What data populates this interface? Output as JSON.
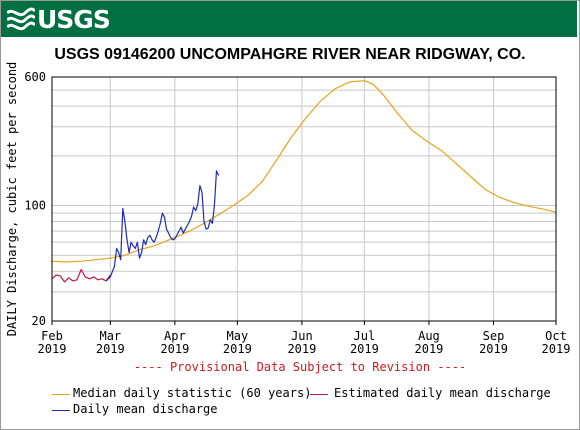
{
  "header": {
    "logo_text": "USGS",
    "brand_color": "#006f41"
  },
  "chart_data": {
    "type": "line",
    "title": "USGS 09146200 UNCOMPAHGRE RIVER NEAR RIDGWAY, CO.",
    "ylabel": "DAILY Discharge, cubic feet per second",
    "yscale": "log",
    "ylim": [
      20,
      600
    ],
    "yticks": [
      {
        "value": 20,
        "label": "20"
      },
      {
        "value": 100,
        "label": "100"
      },
      {
        "value": 600,
        "label": "600"
      }
    ],
    "xlim": [
      "2019-02-01",
      "2019-10-01"
    ],
    "xticks": [
      {
        "date": "2019-02-01",
        "label1": "Feb",
        "label2": "2019"
      },
      {
        "date": "2019-03-01",
        "label1": "Mar",
        "label2": "2019"
      },
      {
        "date": "2019-04-01",
        "label1": "Apr",
        "label2": "2019"
      },
      {
        "date": "2019-05-01",
        "label1": "May",
        "label2": "2019"
      },
      {
        "date": "2019-06-01",
        "label1": "Jun",
        "label2": "2019"
      },
      {
        "date": "2019-07-01",
        "label1": "Jul",
        "label2": "2019"
      },
      {
        "date": "2019-08-01",
        "label1": "Aug",
        "label2": "2019"
      },
      {
        "date": "2019-09-01",
        "label1": "Sep",
        "label2": "2019"
      },
      {
        "date": "2019-10-01",
        "label1": "Oct",
        "label2": "2019"
      }
    ],
    "grid": true,
    "legend_position": "bottom",
    "note": "---- Provisional Data Subject to Revision ----",
    "series": [
      {
        "name": "Median daily statistic (60 years)",
        "color": "#e6a31c",
        "points": [
          [
            "2019-02-01",
            46
          ],
          [
            "2019-02-08",
            45.5
          ],
          [
            "2019-02-15",
            46
          ],
          [
            "2019-02-22",
            47
          ],
          [
            "2019-03-01",
            48
          ],
          [
            "2019-03-08",
            50
          ],
          [
            "2019-03-15",
            54
          ],
          [
            "2019-03-22",
            57
          ],
          [
            "2019-04-01",
            64
          ],
          [
            "2019-04-08",
            70
          ],
          [
            "2019-04-15",
            78
          ],
          [
            "2019-04-22",
            88
          ],
          [
            "2019-04-29",
            100
          ],
          [
            "2019-05-06",
            115
          ],
          [
            "2019-05-13",
            140
          ],
          [
            "2019-05-20",
            190
          ],
          [
            "2019-05-27",
            260
          ],
          [
            "2019-06-03",
            340
          ],
          [
            "2019-06-10",
            430
          ],
          [
            "2019-06-17",
            510
          ],
          [
            "2019-06-24",
            560
          ],
          [
            "2019-07-01",
            570
          ],
          [
            "2019-07-05",
            545
          ],
          [
            "2019-07-10",
            470
          ],
          [
            "2019-07-17",
            360
          ],
          [
            "2019-07-24",
            285
          ],
          [
            "2019-07-31",
            245
          ],
          [
            "2019-08-07",
            215
          ],
          [
            "2019-08-14",
            180
          ],
          [
            "2019-08-21",
            150
          ],
          [
            "2019-08-28",
            125
          ],
          [
            "2019-09-04",
            112
          ],
          [
            "2019-09-11",
            104
          ],
          [
            "2019-09-18",
            99
          ],
          [
            "2019-09-25",
            95
          ],
          [
            "2019-10-01",
            91
          ]
        ]
      },
      {
        "name": "Estimated daily mean discharge",
        "color": "#c0183a",
        "points": [
          [
            "2019-02-01",
            36
          ],
          [
            "2019-02-03",
            38
          ],
          [
            "2019-02-05",
            37.5
          ],
          [
            "2019-02-07",
            34.5
          ],
          [
            "2019-02-09",
            36.5
          ],
          [
            "2019-02-11",
            35
          ],
          [
            "2019-02-13",
            35.5
          ],
          [
            "2019-02-15",
            41
          ],
          [
            "2019-02-17",
            37
          ],
          [
            "2019-02-19",
            36
          ],
          [
            "2019-02-21",
            37
          ],
          [
            "2019-02-23",
            35.5
          ],
          [
            "2019-02-25",
            36
          ],
          [
            "2019-02-27",
            35
          ],
          [
            "2019-03-01",
            38
          ]
        ]
      },
      {
        "name": "Daily mean discharge",
        "color": "#1d2bb5",
        "points": [
          [
            "2019-02-27",
            35
          ],
          [
            "2019-03-01",
            37
          ],
          [
            "2019-03-03",
            43
          ],
          [
            "2019-03-04",
            55
          ],
          [
            "2019-03-05",
            52
          ],
          [
            "2019-03-06",
            47
          ],
          [
            "2019-03-07",
            96
          ],
          [
            "2019-03-08",
            80
          ],
          [
            "2019-03-09",
            62
          ],
          [
            "2019-03-10",
            52
          ],
          [
            "2019-03-11",
            60
          ],
          [
            "2019-03-12",
            57
          ],
          [
            "2019-03-13",
            55
          ],
          [
            "2019-03-14",
            60
          ],
          [
            "2019-03-15",
            48
          ],
          [
            "2019-03-16",
            52
          ],
          [
            "2019-03-17",
            62
          ],
          [
            "2019-03-18",
            58
          ],
          [
            "2019-03-19",
            64
          ],
          [
            "2019-03-20",
            66
          ],
          [
            "2019-03-21",
            62
          ],
          [
            "2019-03-22",
            60
          ],
          [
            "2019-03-23",
            64
          ],
          [
            "2019-03-24",
            70
          ],
          [
            "2019-03-25",
            78
          ],
          [
            "2019-03-26",
            90
          ],
          [
            "2019-03-27",
            85
          ],
          [
            "2019-03-28",
            72
          ],
          [
            "2019-03-29",
            68
          ],
          [
            "2019-03-30",
            64
          ],
          [
            "2019-03-31",
            62
          ],
          [
            "2019-04-01",
            63
          ],
          [
            "2019-04-03",
            70
          ],
          [
            "2019-04-04",
            74
          ],
          [
            "2019-04-05",
            68
          ],
          [
            "2019-04-06",
            72
          ],
          [
            "2019-04-08",
            80
          ],
          [
            "2019-04-09",
            86
          ],
          [
            "2019-04-10",
            98
          ],
          [
            "2019-04-11",
            93
          ],
          [
            "2019-04-12",
            102
          ],
          [
            "2019-04-13",
            132
          ],
          [
            "2019-04-14",
            120
          ],
          [
            "2019-04-15",
            80
          ],
          [
            "2019-04-16",
            72
          ],
          [
            "2019-04-17",
            73
          ],
          [
            "2019-04-18",
            82
          ],
          [
            "2019-04-19",
            78
          ],
          [
            "2019-04-20",
            100
          ],
          [
            "2019-04-21",
            162
          ],
          [
            "2019-04-22",
            152
          ]
        ]
      }
    ]
  }
}
